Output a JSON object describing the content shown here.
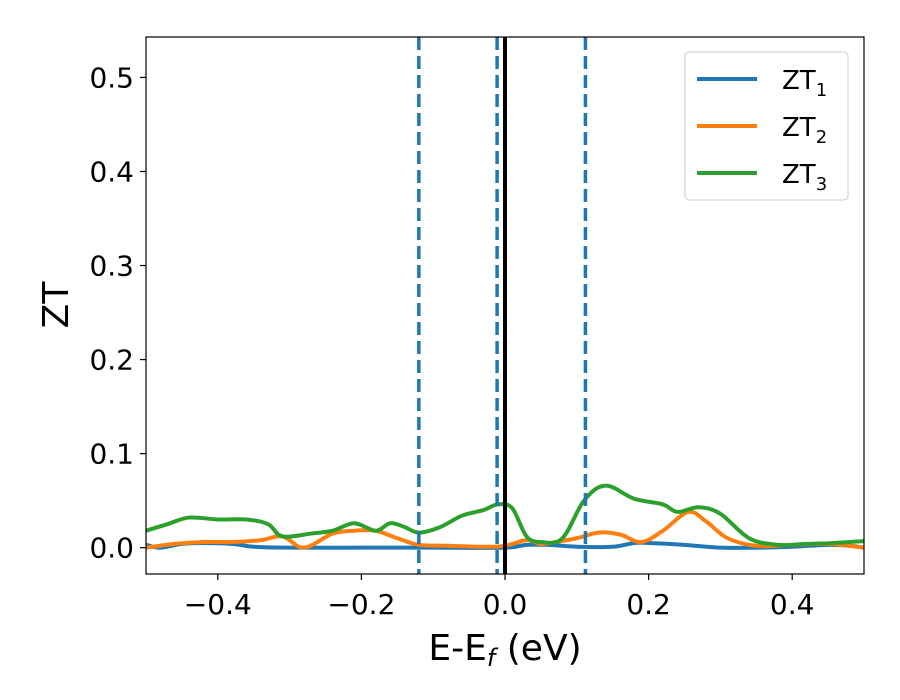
{
  "chart_data": {
    "type": "line",
    "xlabel": "E-E",
    "xlabel_sub": "f",
    "xlabel_unit": " (eV)",
    "ylabel": "ZT",
    "xlim": [
      -0.5,
      0.5
    ],
    "ylim": [
      -0.028,
      0.543
    ],
    "x_ticks": [
      -0.4,
      -0.2,
      0.0,
      0.2,
      0.4
    ],
    "x_tick_labels": [
      "−0.4",
      "−0.2",
      "0.0",
      "0.2",
      "0.4"
    ],
    "y_ticks": [
      0.0,
      0.1,
      0.2,
      0.3,
      0.4,
      0.5
    ],
    "y_tick_labels": [
      "0.0",
      "0.1",
      "0.2",
      "0.3",
      "0.4",
      "0.5"
    ],
    "grid": false,
    "legend_position": "top-right",
    "vertical_lines": [
      {
        "x": 0.0,
        "style": "solid",
        "color": "#000000"
      },
      {
        "x": -0.12,
        "style": "dashed",
        "color": "#1f77b4"
      },
      {
        "x": -0.011,
        "style": "dashed",
        "color": "#1f77b4"
      },
      {
        "x": 0.112,
        "style": "dashed",
        "color": "#1f77b4"
      }
    ],
    "series": [
      {
        "name": "ZT",
        "name_sub": "1",
        "color": "#1f77b4",
        "points": [
          [
            -0.5,
            0.003
          ],
          [
            -0.48,
            0.0
          ],
          [
            -0.45,
            0.004
          ],
          [
            -0.42,
            0.005
          ],
          [
            -0.38,
            0.004
          ],
          [
            -0.35,
            0.001
          ],
          [
            -0.3,
            0.0
          ],
          [
            -0.2,
            0.0
          ],
          [
            -0.1,
            0.0
          ],
          [
            0.0,
            0.0
          ],
          [
            0.03,
            0.003
          ],
          [
            0.06,
            0.003
          ],
          [
            0.1,
            0.001
          ],
          [
            0.15,
            0.001
          ],
          [
            0.18,
            0.005
          ],
          [
            0.2,
            0.005
          ],
          [
            0.25,
            0.003
          ],
          [
            0.3,
            0.0
          ],
          [
            0.35,
            0.0
          ],
          [
            0.4,
            0.001
          ],
          [
            0.45,
            0.003
          ],
          [
            0.48,
            0.002
          ],
          [
            0.5,
            0.0
          ]
        ]
      },
      {
        "name": "ZT",
        "name_sub": "2",
        "color": "#ff7f0e",
        "points": [
          [
            -0.5,
            0.0
          ],
          [
            -0.46,
            0.004
          ],
          [
            -0.42,
            0.006
          ],
          [
            -0.38,
            0.006
          ],
          [
            -0.34,
            0.008
          ],
          [
            -0.31,
            0.012
          ],
          [
            -0.28,
            0.0
          ],
          [
            -0.24,
            0.015
          ],
          [
            -0.21,
            0.018
          ],
          [
            -0.18,
            0.018
          ],
          [
            -0.15,
            0.01
          ],
          [
            -0.12,
            0.003
          ],
          [
            -0.08,
            0.002
          ],
          [
            -0.03,
            0.001
          ],
          [
            0.0,
            0.002
          ],
          [
            0.03,
            0.008
          ],
          [
            0.05,
            0.004
          ],
          [
            0.07,
            0.006
          ],
          [
            0.1,
            0.01
          ],
          [
            0.13,
            0.016
          ],
          [
            0.16,
            0.014
          ],
          [
            0.19,
            0.006
          ],
          [
            0.22,
            0.018
          ],
          [
            0.255,
            0.038
          ],
          [
            0.28,
            0.028
          ],
          [
            0.31,
            0.01
          ],
          [
            0.35,
            0.002
          ],
          [
            0.4,
            0.003
          ],
          [
            0.45,
            0.004
          ],
          [
            0.5,
            0.0
          ]
        ]
      },
      {
        "name": "ZT",
        "name_sub": "3",
        "color": "#2ca02c",
        "points": [
          [
            -0.5,
            0.018
          ],
          [
            -0.47,
            0.025
          ],
          [
            -0.44,
            0.032
          ],
          [
            -0.4,
            0.03
          ],
          [
            -0.36,
            0.03
          ],
          [
            -0.33,
            0.025
          ],
          [
            -0.31,
            0.012
          ],
          [
            -0.27,
            0.015
          ],
          [
            -0.24,
            0.018
          ],
          [
            -0.21,
            0.026
          ],
          [
            -0.18,
            0.018
          ],
          [
            -0.16,
            0.026
          ],
          [
            -0.14,
            0.022
          ],
          [
            -0.12,
            0.016
          ],
          [
            -0.09,
            0.022
          ],
          [
            -0.06,
            0.034
          ],
          [
            -0.03,
            0.04
          ],
          [
            -0.01,
            0.046
          ],
          [
            0.01,
            0.042
          ],
          [
            0.03,
            0.012
          ],
          [
            0.05,
            0.006
          ],
          [
            0.08,
            0.01
          ],
          [
            0.11,
            0.05
          ],
          [
            0.14,
            0.066
          ],
          [
            0.18,
            0.052
          ],
          [
            0.22,
            0.046
          ],
          [
            0.24,
            0.038
          ],
          [
            0.27,
            0.043
          ],
          [
            0.3,
            0.036
          ],
          [
            0.34,
            0.01
          ],
          [
            0.38,
            0.003
          ],
          [
            0.42,
            0.004
          ],
          [
            0.46,
            0.005
          ],
          [
            0.5,
            0.007
          ]
        ]
      }
    ]
  }
}
